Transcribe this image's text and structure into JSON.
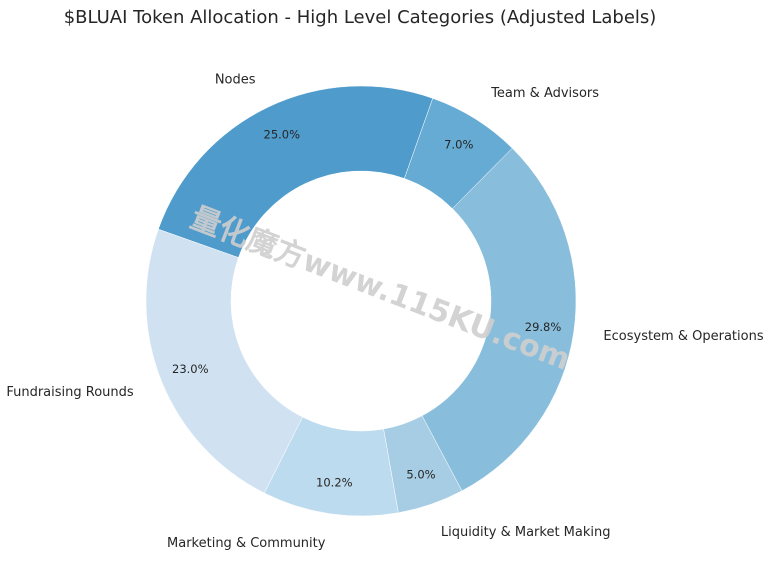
{
  "chart_data": {
    "type": "donut",
    "title": "$BLUAI Token Allocation - High Level Categories (Adjusted Labels)",
    "categories": [
      "Nodes",
      "Fundraising Rounds",
      "Marketing & Community",
      "Liquidity & Market Making",
      "Ecosystem & Operations",
      "Team & Advisors"
    ],
    "values": [
      25.0,
      23.0,
      10.2,
      5.0,
      29.8,
      7.0
    ],
    "value_labels": [
      "25.0%",
      "23.0%",
      "10.2%",
      "5.0%",
      "29.8%",
      "7.0%"
    ],
    "colors": [
      "#4f9bcb",
      "#d0e2f2",
      "#bddbee",
      "#a6cde3",
      "#88bedc",
      "#66abd4"
    ],
    "watermark": "量化魔方www.115KU.com"
  }
}
